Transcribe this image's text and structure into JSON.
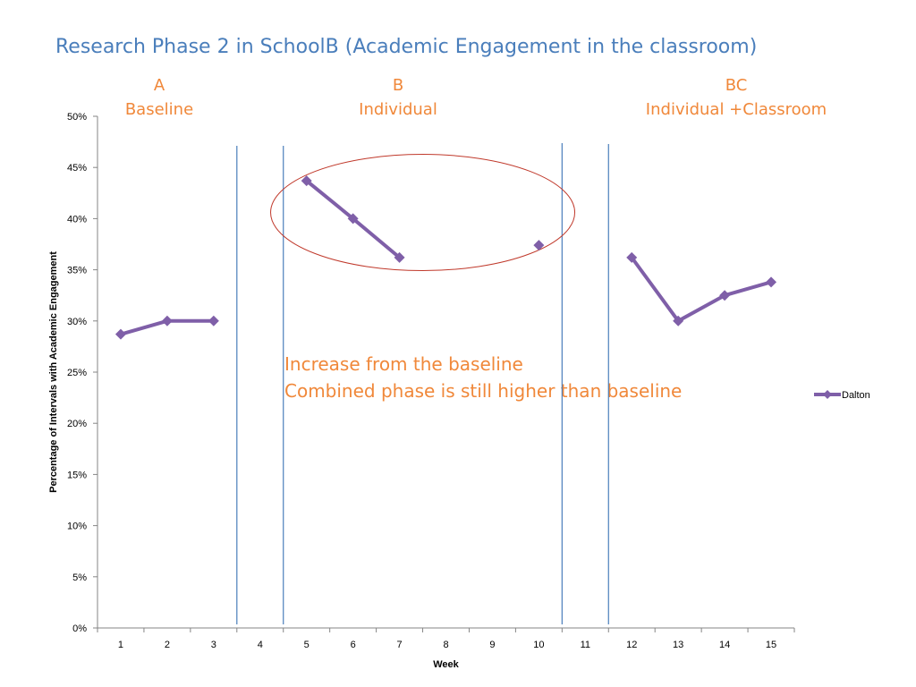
{
  "chart_data": {
    "type": "line",
    "title": "Research Phase 2 in SchoolB (Academic Engagement in the classroom)",
    "xlabel": "Week",
    "ylabel": "Percentage of Intervals with Academic Engagement",
    "x_categories": [
      "1",
      "2",
      "3",
      "4",
      "5",
      "6",
      "7",
      "8",
      "9",
      "10",
      "11",
      "12",
      "13",
      "14",
      "15"
    ],
    "y_ticks": [
      "0%",
      "5%",
      "10%",
      "15%",
      "20%",
      "25%",
      "30%",
      "35%",
      "40%",
      "45%",
      "50%"
    ],
    "ylim": [
      0,
      50
    ],
    "series": [
      {
        "name": "Dalton",
        "color": "#7f5fa8",
        "segments": [
          [
            [
              1,
              28.7
            ],
            [
              2,
              30.0
            ],
            [
              3,
              30.0
            ]
          ],
          [
            [
              5,
              43.7
            ],
            [
              6,
              40.0
            ],
            [
              7,
              36.2
            ]
          ],
          [
            [
              10,
              37.4
            ]
          ],
          [
            [
              12,
              36.2
            ],
            [
              13,
              30.0
            ],
            [
              14,
              32.5
            ],
            [
              15,
              33.8
            ]
          ]
        ]
      }
    ],
    "phases": [
      {
        "code": "A",
        "name": "Baseline"
      },
      {
        "code": "B",
        "name": "Individual"
      },
      {
        "code": "BC",
        "name": "Individual +Classroom"
      }
    ],
    "annotations": [
      "Increase from the baseline",
      "Combined phase is still higher than baseline"
    ],
    "phase_line_color": "#4a7ebb",
    "highlight_ellipse_color": "#c0392b",
    "legend": {
      "position": "right",
      "entries": [
        "Dalton"
      ]
    }
  }
}
